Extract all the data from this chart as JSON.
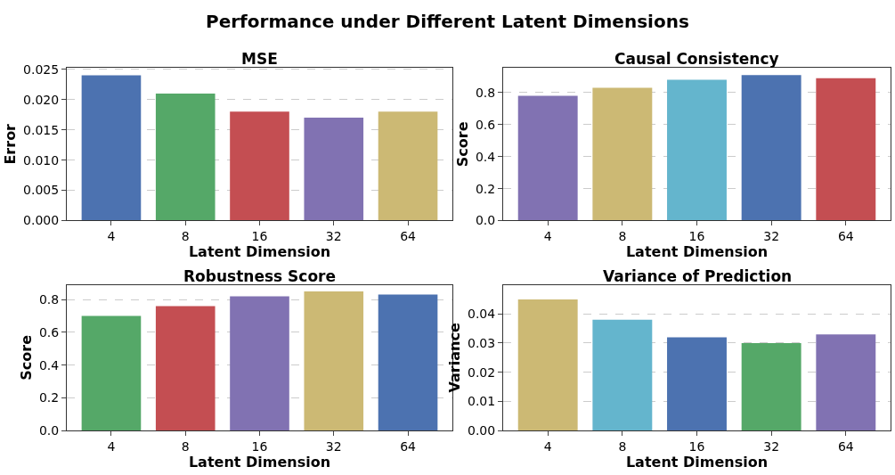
{
  "chart_data": [
    {
      "type": "bar",
      "title": "MSE",
      "xlabel": "Latent Dimension",
      "ylabel": "Error",
      "annotations": [
        "Performance under Different Latent Dimensions"
      ],
      "categories": [
        "4",
        "8",
        "16",
        "32",
        "64"
      ],
      "values": [
        0.024,
        0.021,
        0.018,
        0.017,
        0.018
      ],
      "colors": [
        "#4c72b0",
        "#55a868",
        "#c44e52",
        "#8172b2",
        "#ccb974"
      ],
      "ylim": [
        0,
        0.02525
      ],
      "yticks": [
        {
          "value": 0,
          "label": "0.000"
        },
        {
          "value": 0.005,
          "label": "0.005"
        },
        {
          "value": 0.01,
          "label": "0.010"
        },
        {
          "value": 0.015,
          "label": "0.015"
        },
        {
          "value": 0.02,
          "label": "0.020"
        },
        {
          "value": 0.025,
          "label": "0.025"
        }
      ],
      "grid": "y"
    },
    {
      "type": "bar",
      "title": "Causal Consistency",
      "xlabel": "Latent Dimension",
      "ylabel": "Score",
      "categories": [
        "4",
        "8",
        "16",
        "32",
        "64"
      ],
      "values": [
        0.78,
        0.83,
        0.88,
        0.91,
        0.89
      ],
      "colors": [
        "#8172b2",
        "#ccb974",
        "#64b5cd",
        "#4c72b0",
        "#c44e52"
      ],
      "ylim": [
        0,
        0.955
      ],
      "yticks": [
        {
          "value": 0,
          "label": "0.0"
        },
        {
          "value": 0.2,
          "label": "0.2"
        },
        {
          "value": 0.4,
          "label": "0.4"
        },
        {
          "value": 0.6,
          "label": "0.6"
        },
        {
          "value": 0.8,
          "label": "0.8"
        }
      ],
      "grid": "y"
    },
    {
      "type": "bar",
      "title": "Robustness Score",
      "xlabel": "Latent Dimension",
      "ylabel": "Score",
      "categories": [
        "4",
        "8",
        "16",
        "32",
        "64"
      ],
      "values": [
        0.7,
        0.76,
        0.82,
        0.85,
        0.83
      ],
      "colors": [
        "#55a868",
        "#c44e52",
        "#8172b2",
        "#ccb974",
        "#4c72b0"
      ],
      "ylim": [
        0,
        0.89
      ],
      "yticks": [
        {
          "value": 0,
          "label": "0.0"
        },
        {
          "value": 0.2,
          "label": "0.2"
        },
        {
          "value": 0.4,
          "label": "0.4"
        },
        {
          "value": 0.6,
          "label": "0.6"
        },
        {
          "value": 0.8,
          "label": "0.8"
        }
      ],
      "grid": "y"
    },
    {
      "type": "bar",
      "title": "Variance of Prediction",
      "xlabel": "Latent Dimension",
      "ylabel": "Variance",
      "categories": [
        "4",
        "8",
        "16",
        "32",
        "64"
      ],
      "values": [
        0.045,
        0.038,
        0.032,
        0.03,
        0.033
      ],
      "colors": [
        "#ccb974",
        "#64b5cd",
        "#4c72b0",
        "#55a868",
        "#8172b2"
      ],
      "ylim": [
        0,
        0.05
      ],
      "yticks": [
        {
          "value": 0,
          "label": "0.00"
        },
        {
          "value": 0.01,
          "label": "0.01"
        },
        {
          "value": 0.02,
          "label": "0.02"
        },
        {
          "value": 0.03,
          "label": "0.03"
        },
        {
          "value": 0.04,
          "label": "0.04"
        }
      ],
      "grid": "y"
    }
  ]
}
